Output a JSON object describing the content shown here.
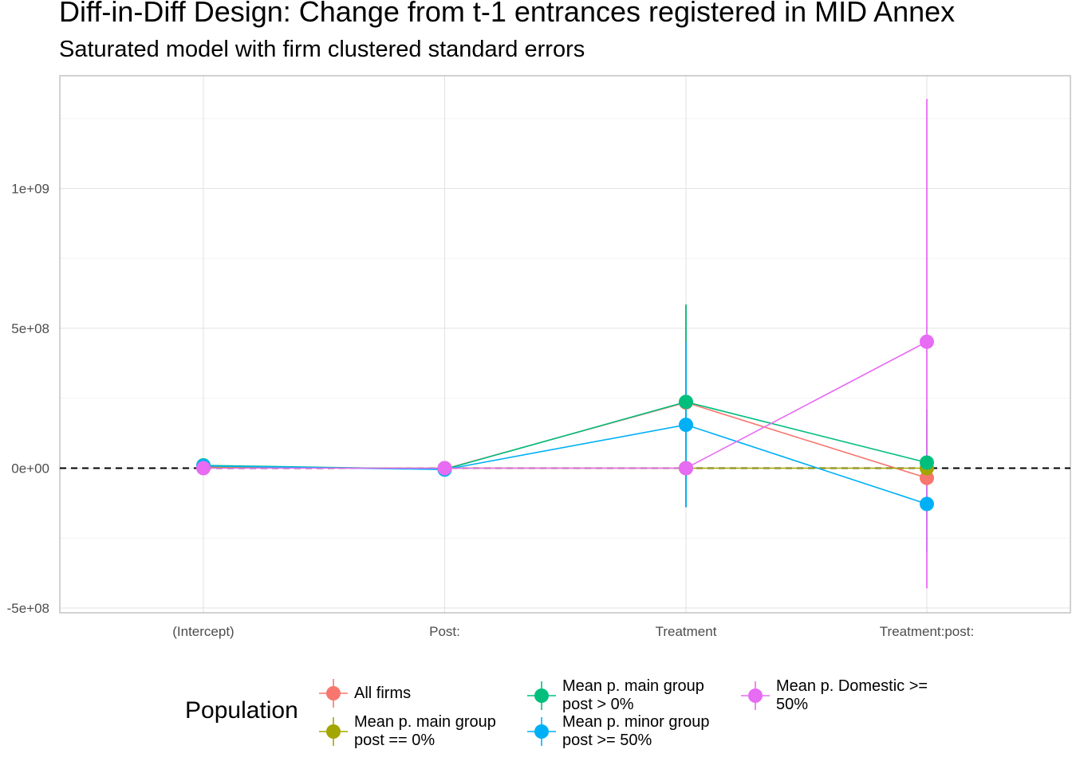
{
  "chart_data": {
    "type": "scatter",
    "title": "Diff-in-Diff Design: Change from t-1 entrances registered in MID Annex",
    "subtitle": "Saturated model with firm clustered standard errors",
    "xlabel": "",
    "ylabel": "",
    "categories": [
      "(Intercept)",
      "Post:",
      "Treatment",
      "Treatment:post:"
    ],
    "ylim": [
      -500000000,
      1300000000
    ],
    "y_ticks": [
      -500000000,
      0,
      500000000,
      1000000000
    ],
    "y_tick_labels": [
      "-5e+08",
      "0e+00",
      "5e+08",
      "1e+09"
    ],
    "grid": true,
    "reference_line": {
      "y": 0,
      "style": "dashed"
    },
    "legend": {
      "title": "Population",
      "placement": "bottom"
    },
    "series": [
      {
        "name": "All firms",
        "color": "#F8766D",
        "values": [
          5000000,
          -3000000,
          235000000,
          -35000000
        ],
        "lower": [
          2000000,
          -8000000,
          -140000000,
          -200000000
        ],
        "upper": [
          8000000,
          2000000,
          580000000,
          150000000
        ]
      },
      {
        "name": "Mean p. main group post == 0%",
        "color": "#A3A500",
        "values": [
          2000000,
          0,
          0,
          0
        ],
        "lower": [
          1000000,
          -1000000,
          -1000000,
          -1000000
        ],
        "upper": [
          3000000,
          1000000,
          1000000,
          1000000
        ]
      },
      {
        "name": "Mean p. main group post > 0%",
        "color": "#00BF7D",
        "values": [
          10000000,
          -4000000,
          237000000,
          20000000
        ],
        "lower": [
          5000000,
          -9000000,
          -135000000,
          -180000000
        ],
        "upper": [
          15000000,
          1000000,
          585000000,
          210000000
        ]
      },
      {
        "name": "Mean p. minor group post >= 50%",
        "color": "#00B0F6",
        "values": [
          8000000,
          -5000000,
          155000000,
          -128000000
        ],
        "lower": [
          4000000,
          -10000000,
          -140000000,
          -300000000
        ],
        "upper": [
          12000000,
          0,
          450000000,
          60000000
        ]
      },
      {
        "name": "Mean p. Domestic >= 50%",
        "color": "#E76BF3",
        "values": [
          0,
          0,
          0,
          452000000
        ],
        "lower": [
          -2000000,
          -2000000,
          -2000000,
          -430000000
        ],
        "upper": [
          2000000,
          2000000,
          2000000,
          1320000000
        ]
      }
    ]
  }
}
